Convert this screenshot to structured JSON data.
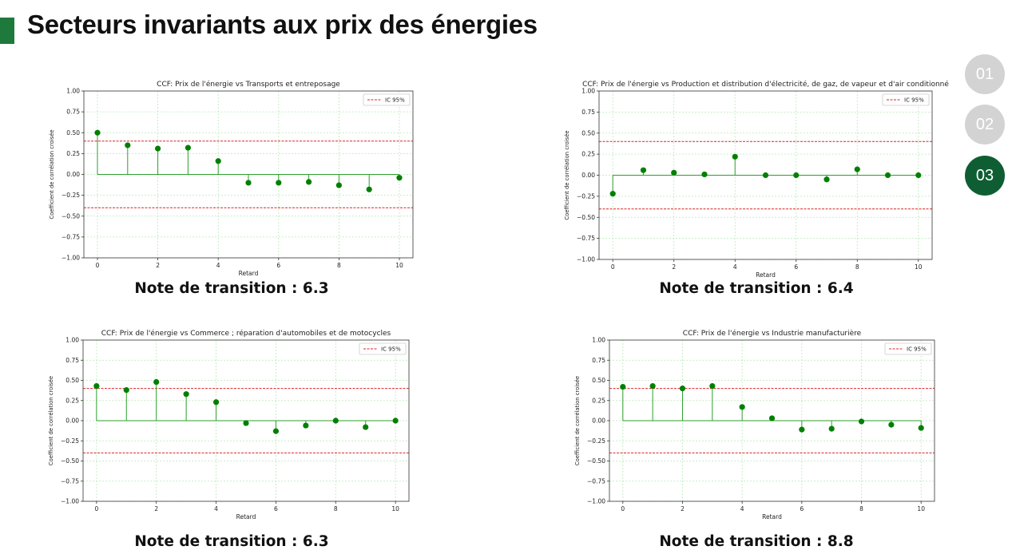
{
  "page": {
    "title": "Secteurs invariants aux prix des énergies"
  },
  "nav": {
    "items": [
      "01",
      "02",
      "03"
    ],
    "active_index": 2
  },
  "colors": {
    "accent": "#1e7a3c",
    "nav_active": "#0f5e33",
    "nav_inactive": "#d3d3d3",
    "stem": "#2ca02c",
    "marker": "#008000",
    "ci_line": "#d62728",
    "grid": "#b8e8b8"
  },
  "notes": [
    "Note de transition : 6.3",
    "Note de transition : 6.4",
    "Note de transition : 6.3",
    "Note de transition : 8.8"
  ],
  "chart_data": [
    {
      "type": "stem",
      "title": "CCF: Prix de l'énergie vs Transports et entreposage",
      "xlabel": "Retard",
      "ylabel": "Coefficient de corrélation croisée",
      "x": [
        0,
        1,
        2,
        3,
        4,
        5,
        6,
        7,
        8,
        9,
        10
      ],
      "y": [
        0.5,
        0.35,
        0.31,
        0.32,
        0.16,
        -0.1,
        -0.1,
        -0.09,
        -0.13,
        -0.18,
        -0.04
      ],
      "ci": 0.4,
      "legend": "IC 95%",
      "legend_position": "top-right",
      "xlim": [
        -0.45,
        10.45
      ],
      "ylim": [
        -1.0,
        1.0
      ],
      "xticks": [
        0,
        2,
        4,
        6,
        8,
        10
      ],
      "yticks": [
        1.0,
        0.75,
        0.5,
        0.25,
        0.0,
        -0.25,
        -0.5,
        -0.75,
        -1.0
      ],
      "ytick_labels": [
        "1.00",
        "0.75",
        "0.50",
        "0.25",
        "0.00",
        "−0.25",
        "−0.50",
        "−0.75",
        "−1.00"
      ],
      "grid": true
    },
    {
      "type": "stem",
      "title": "CCF: Prix de l'énergie vs Production et distribution d'électricité, de gaz, de vapeur et d'air conditionné",
      "xlabel": "Retard",
      "ylabel": "Coefficient de corrélation croisée",
      "x": [
        0,
        1,
        2,
        3,
        4,
        5,
        6,
        7,
        8,
        9,
        10
      ],
      "y": [
        -0.22,
        0.06,
        0.03,
        0.01,
        0.22,
        0.0,
        0.0,
        -0.05,
        0.07,
        0.0,
        0.0
      ],
      "ci": 0.4,
      "legend": "IC 95%",
      "legend_position": "top-right",
      "xlim": [
        -0.45,
        10.45
      ],
      "ylim": [
        -1.0,
        1.0
      ],
      "xticks": [
        0,
        2,
        4,
        6,
        8,
        10
      ],
      "yticks": [
        1.0,
        0.75,
        0.5,
        0.25,
        0.0,
        -0.25,
        -0.5,
        -0.75,
        -1.0
      ],
      "ytick_labels": [
        "1.00",
        "0.75",
        "0.50",
        "0.25",
        "0.00",
        "−0.25",
        "−0.50",
        "−0.75",
        "−1.00"
      ],
      "grid": true
    },
    {
      "type": "stem",
      "title": "CCF: Prix de l'énergie vs Commerce ; réparation d'automobiles et de motocycles",
      "xlabel": "Retard",
      "ylabel": "Coefficient de corrélation croisée",
      "x": [
        0,
        1,
        2,
        3,
        4,
        5,
        6,
        7,
        8,
        9,
        10
      ],
      "y": [
        0.43,
        0.38,
        0.48,
        0.33,
        0.23,
        -0.03,
        -0.13,
        -0.06,
        0.0,
        -0.08,
        0.0
      ],
      "ci": 0.4,
      "legend": "IC 95%",
      "legend_position": "top-right",
      "xlim": [
        -0.45,
        10.45
      ],
      "ylim": [
        -1.0,
        1.0
      ],
      "xticks": [
        0,
        2,
        4,
        6,
        8,
        10
      ],
      "yticks": [
        1.0,
        0.75,
        0.5,
        0.25,
        0.0,
        -0.25,
        -0.5,
        -0.75,
        -1.0
      ],
      "ytick_labels": [
        "1.00",
        "0.75",
        "0.50",
        "0.25",
        "0.00",
        "−0.25",
        "−0.50",
        "−0.75",
        "−1.00"
      ],
      "grid": true
    },
    {
      "type": "stem",
      "title": "CCF: Prix de l'énergie vs Industrie manufacturière",
      "xlabel": "Retard",
      "ylabel": "Coefficient de corrélation croisée",
      "x": [
        0,
        1,
        2,
        3,
        4,
        5,
        6,
        7,
        8,
        9,
        10
      ],
      "y": [
        0.42,
        0.43,
        0.4,
        0.43,
        0.17,
        0.03,
        -0.11,
        -0.1,
        -0.01,
        -0.05,
        -0.09
      ],
      "ci": 0.4,
      "legend": "IC 95%",
      "legend_position": "top-right",
      "xlim": [
        -0.45,
        10.45
      ],
      "ylim": [
        -1.0,
        1.0
      ],
      "xticks": [
        0,
        2,
        4,
        6,
        8,
        10
      ],
      "yticks": [
        1.0,
        0.75,
        0.5,
        0.25,
        0.0,
        -0.25,
        -0.5,
        -0.75,
        -1.0
      ],
      "ytick_labels": [
        "1.00",
        "0.75",
        "0.50",
        "0.25",
        "0.00",
        "−0.25",
        "−0.50",
        "−0.75",
        "−1.00"
      ],
      "grid": true
    }
  ]
}
